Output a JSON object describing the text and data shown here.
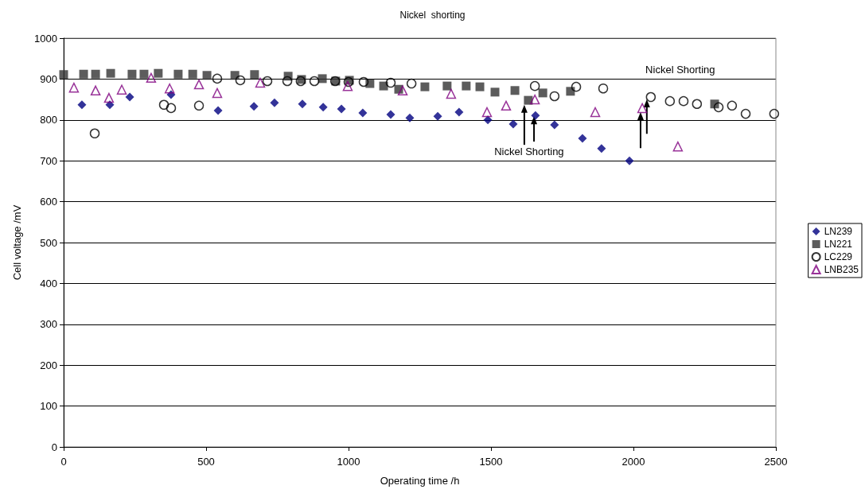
{
  "chart_data": {
    "type": "scatter",
    "title": "Nickel  shorting",
    "xlabel": "Operating time /h",
    "ylabel": "Cell voltage /mV",
    "xlim": [
      0,
      2500
    ],
    "xticks": [
      0,
      500,
      1000,
      1500,
      2000,
      2500
    ],
    "ylim": [
      0,
      1000
    ],
    "yticks": [
      0,
      100,
      200,
      300,
      400,
      500,
      600,
      700,
      800,
      900,
      1000
    ],
    "grid": "y",
    "legend": "right",
    "annotations": [
      {
        "text": "Nickel Shorting",
        "x": 1617,
        "y": 837
      },
      {
        "text": "Nickel Shorting",
        "x": 2061,
        "y": 856
      }
    ],
    "series": [
      {
        "name": "LN239",
        "color": "#000080",
        "marker": "diamond",
        "x": [
          64,
          162,
          232,
          377,
          542,
          668,
          740,
          838,
          911,
          975,
          1050,
          1148,
          1215,
          1313,
          1388,
          1489,
          1578,
          1656,
          1723,
          1821,
          1888,
          1986
        ],
        "values": [
          837,
          837,
          856,
          862,
          823,
          833,
          842,
          839,
          831,
          827,
          817,
          813,
          805,
          809,
          819,
          800,
          790,
          811,
          788,
          755,
          730,
          700
        ]
      },
      {
        "name": "LN221",
        "color": "#333333",
        "marker": "square",
        "x": [
          0,
          70,
          112,
          165,
          240,
          282,
          332,
          402,
          453,
          503,
          601,
          670,
          788,
          835,
          908,
          955,
          1003,
          1075,
          1123,
          1176,
          1268,
          1346,
          1413,
          1461,
          1514,
          1584,
          1631,
          1682,
          1779,
          2285
        ],
        "values": [
          911,
          912,
          912,
          914,
          912,
          912,
          914,
          912,
          912,
          909,
          909,
          911,
          907,
          899,
          901,
          895,
          897,
          889,
          883,
          875,
          881,
          883,
          883,
          881,
          868,
          872,
          848,
          866,
          870,
          839
        ]
      },
      {
        "name": "LC229",
        "color": "#000000",
        "marker": "circle",
        "x": [
          109,
          352,
          377,
          475,
          539,
          620,
          715,
          785,
          832,
          880,
          953,
          1000,
          1053,
          1148,
          1221,
          1654,
          1723,
          1799,
          1894,
          2061,
          2128,
          2176,
          2223,
          2299,
          2346,
          2394,
          2494
        ],
        "values": [
          767,
          837,
          829,
          835,
          901,
          897,
          895,
          895,
          895,
          895,
          895,
          893,
          893,
          891,
          889,
          883,
          858,
          881,
          877,
          856,
          846,
          846,
          839,
          831,
          835,
          815,
          815
        ]
      },
      {
        "name": "LNB235",
        "color": "#800080",
        "marker": "triangle",
        "x": [
          36,
          112,
          159,
          204,
          307,
          372,
          475,
          539,
          690,
          997,
          1190,
          1360,
          1486,
          1553,
          1654,
          1866,
          2031,
          2156
        ],
        "values": [
          879,
          872,
          854,
          874,
          903,
          877,
          887,
          866,
          891,
          883,
          872,
          864,
          819,
          835,
          850,
          819,
          829,
          735
        ]
      }
    ]
  }
}
